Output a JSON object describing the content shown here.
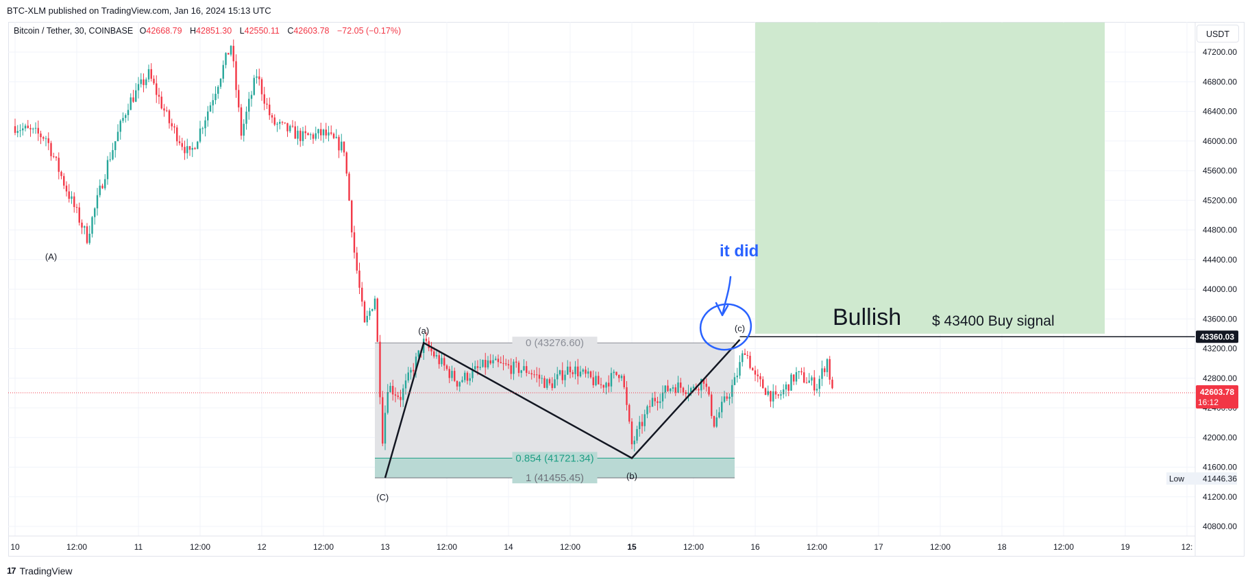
{
  "header": {
    "publish_line": "BTC-XLM published on TradingView.com, Jan 16, 2024 15:13 UTC"
  },
  "legend": {
    "symbol": "Bitcoin / Tether, 30, COINBASE",
    "o_label": "O",
    "o_value": "42668.79",
    "h_label": "H",
    "h_value": "42851.30",
    "l_label": "L",
    "l_value": "42550.11",
    "c_label": "C",
    "c_value": "42603.78",
    "change": "−72.05 (−0.17%)"
  },
  "currency_button": "USDT",
  "footer": {
    "logo": "17",
    "brand": "TradingView"
  },
  "colors": {
    "up": "#26a69a",
    "down": "#f23645",
    "target_zone": "#cfe9cf",
    "fib_box": "#e2e3e6",
    "fib_teal": "#1e9e84",
    "annotation_blue": "#2962ff"
  },
  "chart_data": {
    "type": "candlestick",
    "title": "Bitcoin / Tether, 30, COINBASE",
    "xlabel": "",
    "ylabel": "",
    "ylim": [
      40500,
      47500
    ],
    "grid": true,
    "x_tick_labels": [
      "10",
      "12:00",
      "11",
      "12:00",
      "12",
      "12:00",
      "13",
      "12:00",
      "14",
      "12:00",
      "15",
      "12:00",
      "16",
      "12:00",
      "17",
      "12:00",
      "18",
      "12:00",
      "19",
      "12:"
    ],
    "x_tick_times": [
      "2024-01-10 00:00",
      "2024-01-10 12:00",
      "2024-01-11 00:00",
      "2024-01-11 12:00",
      "2024-01-12 00:00",
      "2024-01-12 12:00",
      "2024-01-13 00:00",
      "2024-01-13 12:00",
      "2024-01-14 00:00",
      "2024-01-14 12:00",
      "2024-01-15 00:00",
      "2024-01-15 12:00",
      "2024-01-16 00:00",
      "2024-01-16 12:00",
      "2024-01-17 00:00",
      "2024-01-17 12:00",
      "2024-01-18 00:00",
      "2024-01-18 12:00",
      "2024-01-19 00:00",
      "2024-01-19 12:00"
    ],
    "y_ticks": [
      "47200.00",
      "46800.00",
      "46400.00",
      "46000.00",
      "45600.00",
      "45200.00",
      "44800.00",
      "44400.00",
      "44000.00",
      "43600.00",
      "43200.00",
      "42800.00",
      "42400.00",
      "42000.00",
      "41600.00",
      "41200.00",
      "40800.00"
    ],
    "price_path": [
      {
        "t": "2024-01-10 00:00",
        "p": 46200
      },
      {
        "t": "2024-01-10 06:00",
        "p": 46050
      },
      {
        "t": "2024-01-10 10:00",
        "p": 45350
      },
      {
        "t": "2024-01-10 14:00",
        "p": 44700
      },
      {
        "t": "2024-01-10 18:00",
        "p": 45700
      },
      {
        "t": "2024-01-10 22:00",
        "p": 46500
      },
      {
        "t": "2024-01-11 02:00",
        "p": 46900
      },
      {
        "t": "2024-01-11 06:00",
        "p": 46250
      },
      {
        "t": "2024-01-11 10:00",
        "p": 45800
      },
      {
        "t": "2024-01-11 14:00",
        "p": 46500
      },
      {
        "t": "2024-01-11 18:00",
        "p": 47300
      },
      {
        "t": "2024-01-11 20:00",
        "p": 46100
      },
      {
        "t": "2024-01-11 23:00",
        "p": 46900
      },
      {
        "t": "2024-01-12 02:00",
        "p": 46250
      },
      {
        "t": "2024-01-12 08:00",
        "p": 46050
      },
      {
        "t": "2024-01-12 12:00",
        "p": 46100
      },
      {
        "t": "2024-01-12 16:00",
        "p": 45900
      },
      {
        "t": "2024-01-12 18:00",
        "p": 44500
      },
      {
        "t": "2024-01-12 20:00",
        "p": 43500
      },
      {
        "t": "2024-01-12 22:00",
        "p": 43900
      },
      {
        "t": "2024-01-12 23:30",
        "p": 42000
      },
      {
        "t": "2024-01-13 00:30",
        "p": 42700
      },
      {
        "t": "2024-01-13 03:00",
        "p": 42550
      },
      {
        "t": "2024-01-13 07:30",
        "p": 43276.6
      },
      {
        "t": "2024-01-13 14:00",
        "p": 42750
      },
      {
        "t": "2024-01-13 20:00",
        "p": 43000
      },
      {
        "t": "2024-01-14 04:00",
        "p": 42900
      },
      {
        "t": "2024-01-14 08:00",
        "p": 42700
      },
      {
        "t": "2024-01-14 12:00",
        "p": 42950
      },
      {
        "t": "2024-01-14 18:00",
        "p": 42700
      },
      {
        "t": "2024-01-14 22:00",
        "p": 42900
      },
      {
        "t": "2024-01-15 00:00",
        "p": 41900
      },
      {
        "t": "2024-01-15 04:00",
        "p": 42500
      },
      {
        "t": "2024-01-15 08:00",
        "p": 42700
      },
      {
        "t": "2024-01-15 12:00",
        "p": 42650
      },
      {
        "t": "2024-01-15 14:00",
        "p": 42800
      },
      {
        "t": "2024-01-15 16:00",
        "p": 42200
      },
      {
        "t": "2024-01-15 20:00",
        "p": 42750
      },
      {
        "t": "2024-01-15 22:00",
        "p": 43200
      },
      {
        "t": "2024-01-16 00:00",
        "p": 42800
      },
      {
        "t": "2024-01-16 04:00",
        "p": 42500
      },
      {
        "t": "2024-01-16 08:00",
        "p": 42850
      },
      {
        "t": "2024-01-16 12:00",
        "p": 42700
      },
      {
        "t": "2024-01-16 14:00",
        "p": 43050
      },
      {
        "t": "2024-01-16 15:00",
        "p": 42603.78
      }
    ],
    "fib_retracement": {
      "start": {
        "t": "2024-01-12 22:00",
        "p": 41455.45
      },
      "end": {
        "t": "2024-01-15 20:00",
        "p": 43276.6
      },
      "levels": [
        {
          "ratio": "0",
          "price": 43276.6,
          "label": "0 (43276.60)"
        },
        {
          "ratio": "0.854",
          "price": 41721.34,
          "label": "0.854 (41721.34)"
        },
        {
          "ratio": "1",
          "price": 41455.45,
          "label": "1 (41455.45)"
        }
      ]
    },
    "zigzag": [
      {
        "t": "2024-01-13 00:00",
        "p": 41455.45
      },
      {
        "t": "2024-01-13 07:30",
        "p": 43276.6
      },
      {
        "t": "2024-01-15 00:00",
        "p": 41721.34
      },
      {
        "t": "2024-01-15 21:00",
        "p": 43320
      }
    ],
    "wave_labels": [
      {
        "text": "(A)",
        "t": "2024-01-10 07:00",
        "p": 44400
      },
      {
        "text": "(a)",
        "t": "2024-01-13 07:30",
        "p": 43400
      },
      {
        "text": "(b)",
        "t": "2024-01-15 00:00",
        "p": 41440
      },
      {
        "text": "(c)",
        "t": "2024-01-15 21:00",
        "p": 43430
      },
      {
        "text": "(C)",
        "t": "2024-01-12 23:30",
        "p": 41150
      }
    ],
    "horizontal_line": {
      "price": 43360.03,
      "from": "2024-01-15 21:00",
      "label": "43360.03"
    },
    "target_zone": {
      "from": "2024-01-16 00:00",
      "to": "2024-01-18 20:00",
      "bottom": 43400,
      "top": 47600
    },
    "annotations": {
      "bullish": "Bullish",
      "buy_signal": "$ 43400 Buy signal",
      "it_did": "it did"
    },
    "last_price": {
      "price": 42603.78,
      "label": "42603.78",
      "countdown": "16:12"
    },
    "low_marker": {
      "label": "Low",
      "price": 41446.36,
      "value": "41446.36"
    }
  }
}
